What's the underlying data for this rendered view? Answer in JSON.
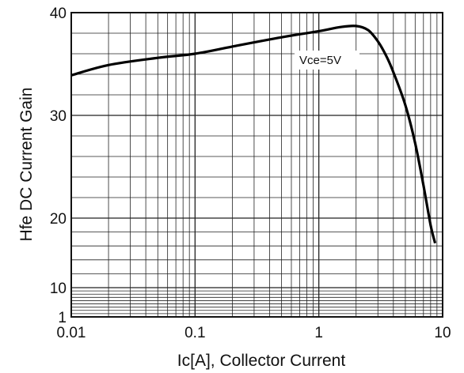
{
  "chart_data": {
    "type": "line",
    "xlabel": "Ic[A], Collector Current",
    "ylabel": "Hfe DC Current Gain",
    "xscale": "log",
    "xlim": [
      0.01,
      10
    ],
    "x_ticks": [
      0.01,
      0.1,
      1,
      10
    ],
    "x_tick_labels": [
      "0.01",
      "0.1",
      "1",
      "10"
    ],
    "y_tick_labels": [
      "1",
      "10",
      "20",
      "30",
      "40"
    ],
    "grid": true,
    "annotations": [
      {
        "text": "Vce=5V"
      }
    ],
    "series": [
      {
        "name": "Vce=5V",
        "x": [
          0.01,
          0.02,
          0.05,
          0.1,
          0.2,
          0.5,
          1,
          1.5,
          2,
          2.5,
          3,
          3.5,
          4,
          5,
          6,
          7,
          8,
          8.7
        ],
        "y": [
          33.9,
          34.9,
          35.6,
          36.0,
          36.7,
          37.6,
          38.2,
          38.6,
          38.7,
          38.3,
          37.2,
          35.8,
          34.2,
          31.0,
          27.3,
          23.2,
          19.0,
          16.4
        ]
      }
    ]
  }
}
